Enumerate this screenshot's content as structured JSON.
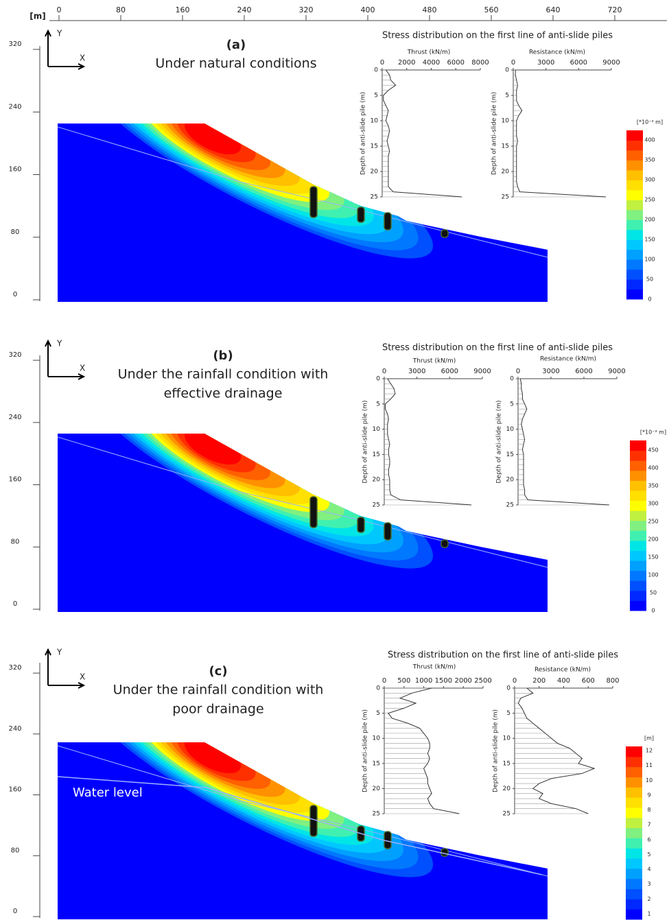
{
  "top_axis": {
    "unit": "[m]",
    "ticks": [
      0,
      80,
      160,
      240,
      320,
      400,
      480,
      560,
      640,
      720
    ]
  },
  "depth": [
    0,
    1,
    2,
    3,
    4,
    5,
    6,
    7,
    8,
    9,
    10,
    11,
    12,
    13,
    14,
    15,
    16,
    17,
    18,
    19,
    20,
    21,
    22,
    23,
    24,
    25
  ],
  "colors": [
    "#0000ff",
    "#0028ff",
    "#0050ff",
    "#0078ff",
    "#00a0ff",
    "#00c8ff",
    "#00e6e6",
    "#40f0b0",
    "#80f080",
    "#c0f040",
    "#ffff00",
    "#ffe000",
    "#ffc000",
    "#ff9000",
    "#ff6000",
    "#ff3000",
    "#ff0000"
  ],
  "axes_labels": {
    "y": "Y",
    "x": "X"
  },
  "panels": [
    {
      "label": "(a)",
      "caption": [
        "Under natural conditions"
      ],
      "yticks": [
        0,
        80,
        160,
        240,
        320
      ],
      "stress_title": "Stress distribution on the first line of anti-slide piles",
      "thrust": {
        "label": "Thrust (kN/m)",
        "xlim": [
          0,
          8000
        ],
        "xticks": [
          0,
          2000,
          4000,
          6000,
          8000
        ],
        "depth_label": "Depth of anti-slide pile (m)",
        "depth_ticks": [
          0,
          5,
          10,
          15,
          20,
          25
        ],
        "values": [
          300,
          600,
          700,
          1100,
          500,
          100,
          100,
          300,
          500,
          400,
          300,
          500,
          600,
          500,
          400,
          500,
          600,
          500,
          500,
          500,
          500,
          500,
          500,
          500,
          900,
          6500
        ]
      },
      "resistance": {
        "label": "Resistance (kN/m)",
        "xlim": [
          0,
          9000
        ],
        "xticks": [
          0,
          3000,
          6000,
          9000
        ],
        "depth_label": "Depth of anti-slide pile (m)",
        "depth_ticks": [
          0,
          5,
          10,
          15,
          20,
          25
        ],
        "values": [
          200,
          200,
          300,
          400,
          300,
          300,
          300,
          500,
          800,
          500,
          300,
          300,
          300,
          300,
          400,
          300,
          300,
          300,
          300,
          300,
          300,
          300,
          300,
          400,
          600,
          8500
        ]
      },
      "colorbar": {
        "unit": "[*10⁻³ m]",
        "ticks": [
          0,
          50,
          100,
          150,
          200,
          250,
          300,
          350,
          400
        ]
      }
    },
    {
      "label": "(b)",
      "caption": [
        "Under the rainfall condition with",
        "effective drainage"
      ],
      "yticks": [
        0,
        80,
        160,
        240,
        320
      ],
      "stress_title": "Stress distribution on the first line of anti-slide piles",
      "thrust": {
        "label": "Thrust (kN/m)",
        "xlim": [
          0,
          9000
        ],
        "xticks": [
          0,
          3000,
          6000,
          9000
        ],
        "depth_label": "Depth of anti-slide pile (m)",
        "depth_ticks": [
          0,
          5,
          10,
          15,
          20,
          25
        ],
        "values": [
          300,
          600,
          900,
          1000,
          600,
          100,
          100,
          300,
          400,
          300,
          300,
          300,
          400,
          500,
          400,
          400,
          500,
          500,
          400,
          400,
          500,
          500,
          500,
          600,
          1500,
          8000
        ]
      },
      "resistance": {
        "label": "Resistance (kN/m)",
        "xlim": [
          0,
          9000
        ],
        "xticks": [
          0,
          3000,
          6000,
          9000
        ],
        "depth_label": "Depth of anti-slide pile (m)",
        "depth_ticks": [
          0,
          5,
          10,
          15,
          20,
          25
        ],
        "values": [
          200,
          300,
          300,
          400,
          400,
          600,
          800,
          600,
          400,
          300,
          400,
          500,
          600,
          500,
          400,
          500,
          500,
          500,
          500,
          500,
          500,
          500,
          600,
          600,
          900,
          8300
        ]
      },
      "colorbar": {
        "unit": "[*10⁻³ m]",
        "ticks": [
          0,
          50,
          100,
          150,
          200,
          250,
          300,
          350,
          400,
          450
        ]
      }
    },
    {
      "label": "(c)",
      "caption": [
        "Under the rainfall condition with",
        "poor drainage"
      ],
      "yticks": [
        0,
        80,
        160,
        240,
        320
      ],
      "water_level": "Water level",
      "stress_title": "Stress distribution on the first line of anti-slide piles",
      "thrust": {
        "label": "Thrust (kN/m)",
        "xlim": [
          0,
          2500
        ],
        "xticks": [
          0,
          500,
          1000,
          1500,
          2000,
          2500
        ],
        "depth_label": "Depth of anti-slide pile (m)",
        "depth_ticks": [
          0,
          5,
          10,
          15,
          20,
          25
        ],
        "values": [
          1200,
          700,
          400,
          800,
          500,
          100,
          200,
          600,
          900,
          1000,
          1100,
          1150,
          1150,
          1100,
          1150,
          1100,
          1000,
          1050,
          1100,
          1100,
          1150,
          1200,
          1100,
          1150,
          1250,
          1900
        ]
      },
      "resistance": {
        "label": "Resistance (kN/m)",
        "xlim": [
          0,
          800
        ],
        "xticks": [
          0,
          200,
          400,
          600,
          800
        ],
        "depth_label": "Depth of anti-slide pile (m)",
        "depth_ticks": [
          0,
          5,
          10,
          15,
          20,
          25
        ],
        "values": [
          100,
          150,
          50,
          30,
          60,
          80,
          100,
          150,
          200,
          250,
          300,
          350,
          450,
          500,
          550,
          520,
          650,
          550,
          300,
          200,
          150,
          230,
          200,
          300,
          500,
          600
        ]
      },
      "colorbar": {
        "unit": "[m]",
        "ticks": [
          1,
          2,
          3,
          4,
          5,
          6,
          7,
          8,
          9,
          10,
          11,
          12
        ]
      }
    }
  ]
}
